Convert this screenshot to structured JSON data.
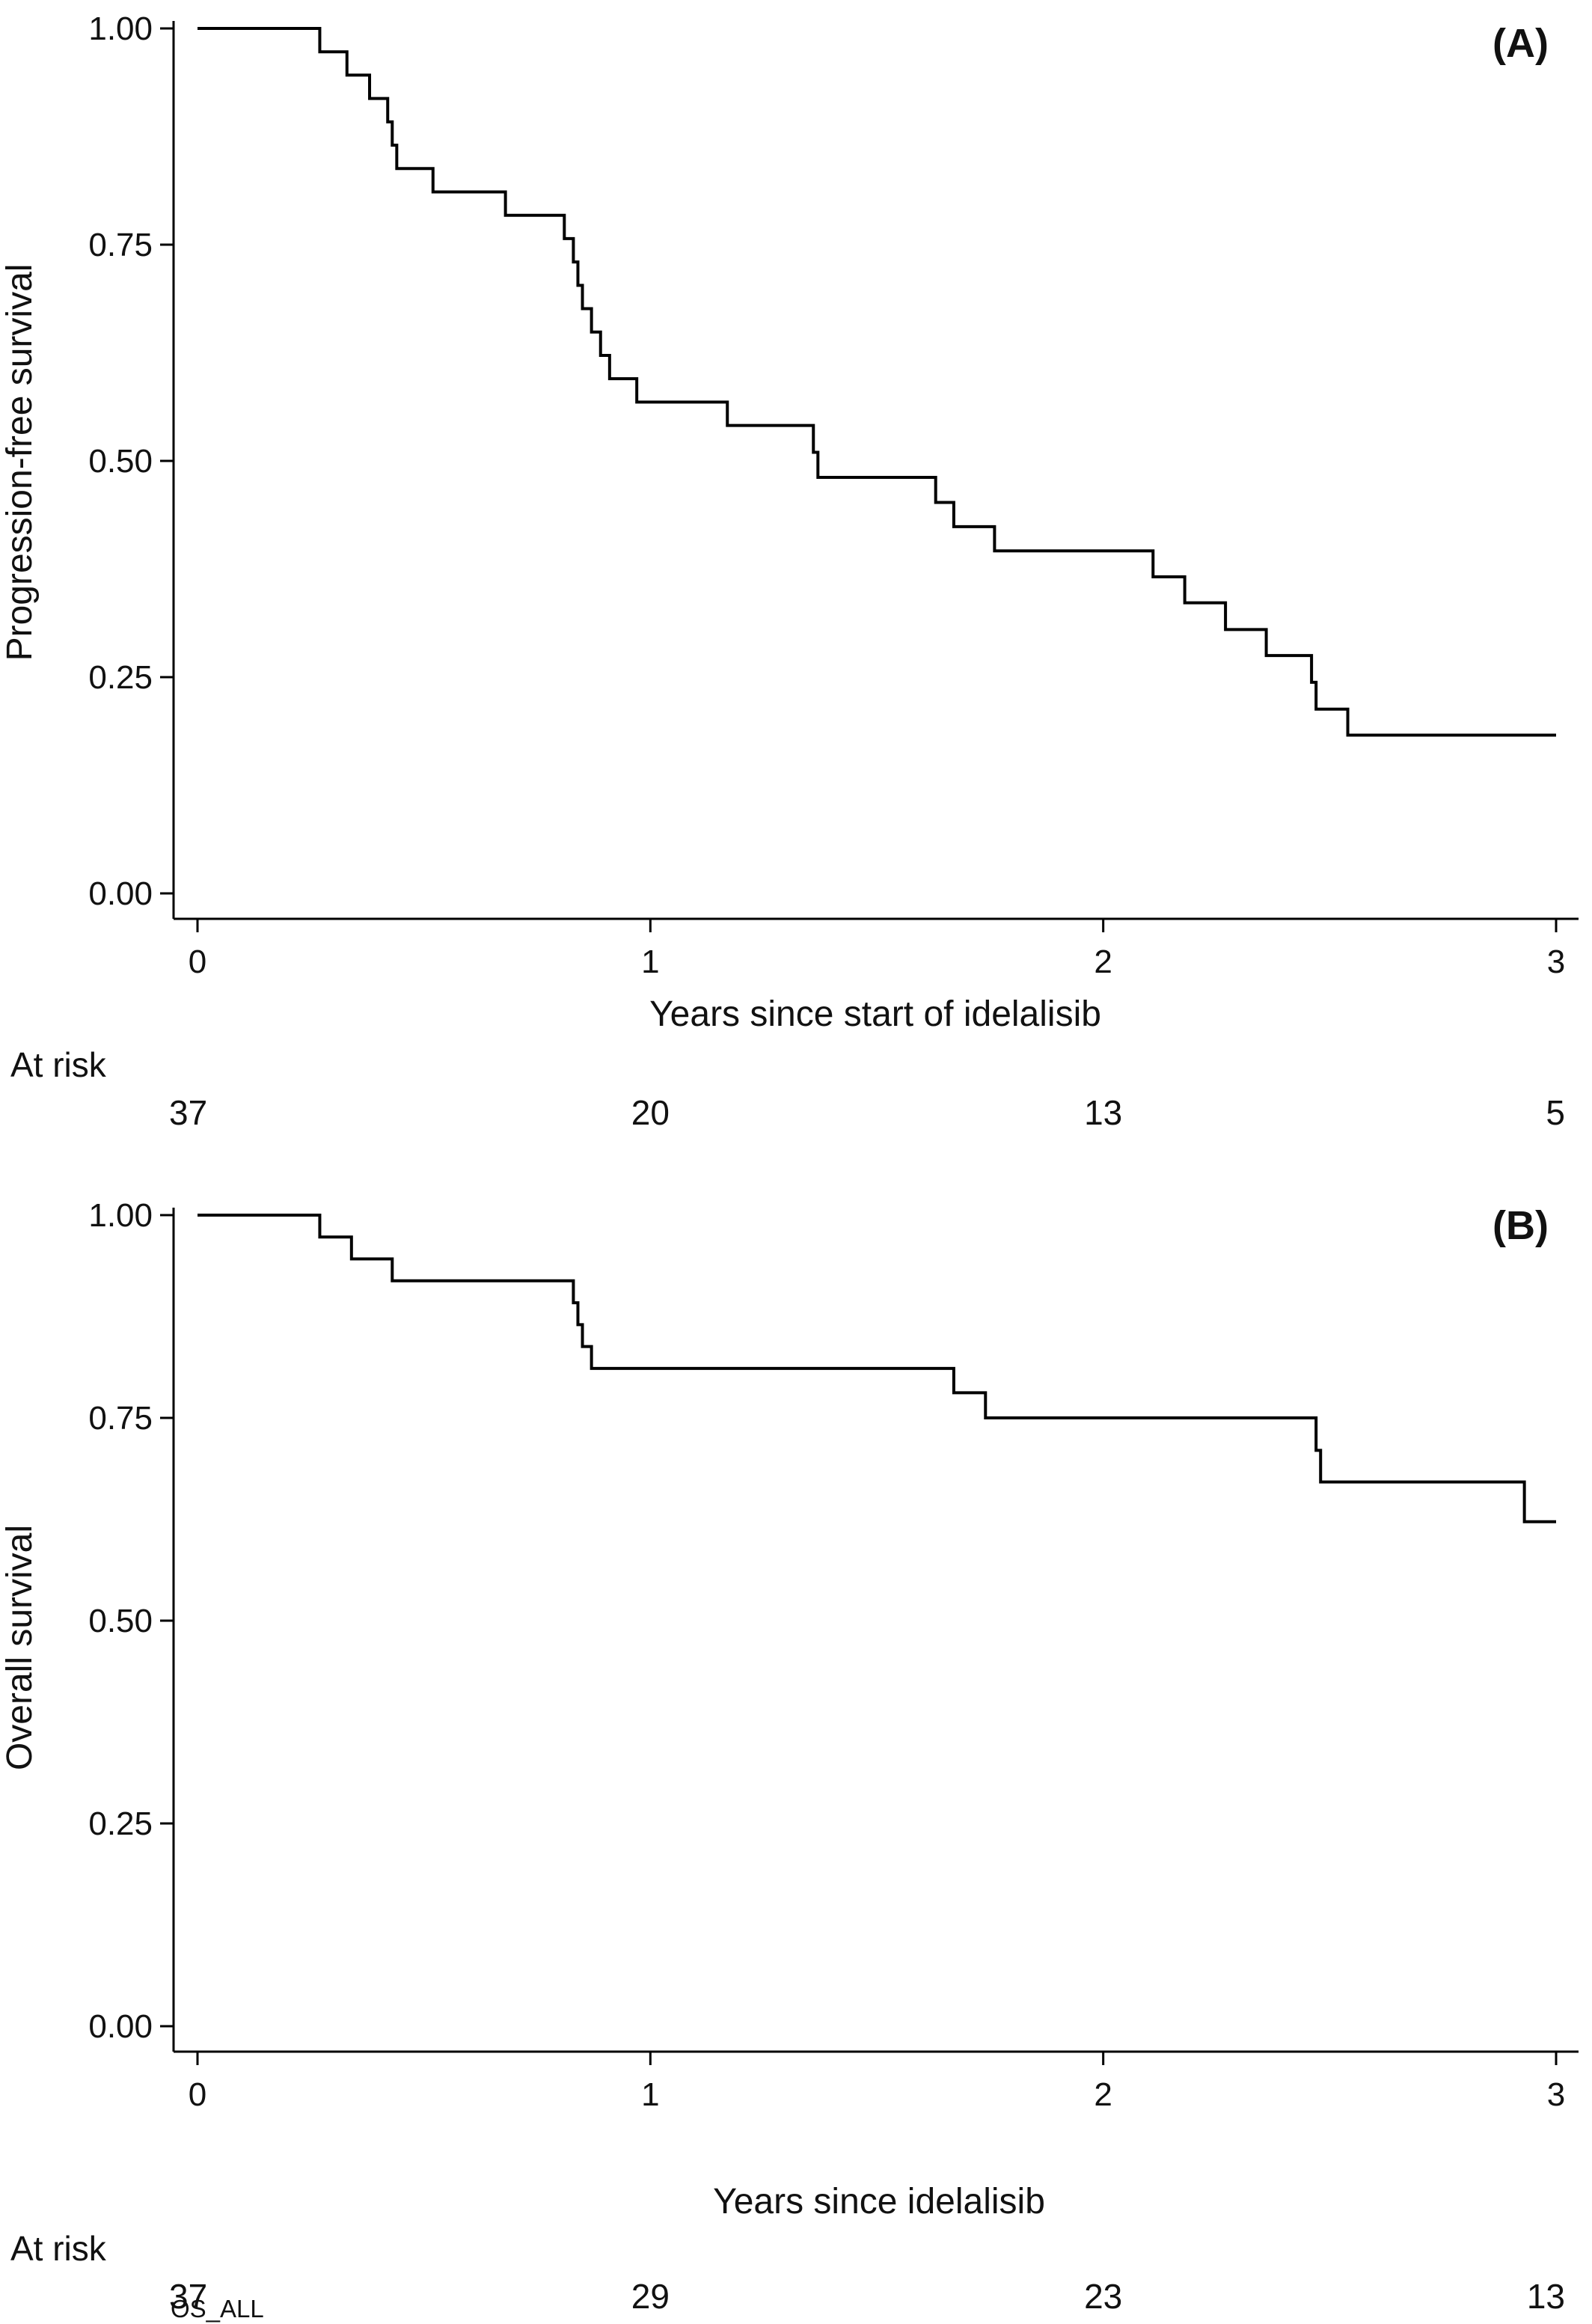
{
  "chart_data": [
    {
      "type": "line",
      "step": true,
      "panel_label": "(A)",
      "xlabel": "Years since start of idelalisib",
      "ylabel": "Progression-free survival",
      "xlim": [
        0,
        3
      ],
      "ylim": [
        0,
        1
      ],
      "x_ticks": [
        0,
        1,
        2,
        3
      ],
      "x_tick_labels": [
        "0",
        "1",
        "2",
        "3"
      ],
      "y_ticks": [
        0,
        0.25,
        0.5,
        0.75,
        1
      ],
      "y_tick_labels": [
        "0.00",
        "0.25",
        "0.50",
        "0.75",
        "1.00"
      ],
      "grid": false,
      "line_color": "#000000",
      "series": [
        {
          "x": [
            0,
            0.27,
            0.33,
            0.38,
            0.42,
            0.43,
            0.44,
            0.46,
            0.52,
            0.68,
            0.81,
            0.83,
            0.84,
            0.85,
            0.87,
            0.89,
            0.91,
            0.97,
            1.17,
            1.36,
            1.37,
            1.63,
            1.67,
            1.76,
            2.11,
            2.18,
            2.27,
            2.36,
            2.46,
            2.47,
            2.49,
            2.54,
            3.0
          ],
          "y": [
            1.0,
            0.973,
            0.946,
            0.919,
            0.892,
            0.865,
            0.838,
            0.838,
            0.811,
            0.784,
            0.757,
            0.73,
            0.703,
            0.676,
            0.649,
            0.622,
            0.595,
            0.568,
            0.541,
            0.51,
            0.481,
            0.452,
            0.424,
            0.396,
            0.366,
            0.336,
            0.305,
            0.275,
            0.244,
            0.213,
            0.213,
            0.183,
            0.183
          ]
        }
      ],
      "at_risk": {
        "title": "At risk",
        "x": [
          0,
          1,
          2,
          3
        ],
        "counts": [
          "37",
          "20",
          "13",
          "5"
        ]
      }
    },
    {
      "type": "line",
      "step": true,
      "panel_label": "(B)",
      "xlabel": "Years since idelalisib",
      "ylabel": "Overall survival",
      "xlim": [
        0,
        3
      ],
      "ylim": [
        0,
        1
      ],
      "x_ticks": [
        0,
        1,
        2,
        3
      ],
      "x_tick_labels": [
        "0",
        "1",
        "2",
        "3"
      ],
      "y_ticks": [
        0,
        0.25,
        0.5,
        0.75,
        1
      ],
      "y_tick_labels": [
        "0.00",
        "0.25",
        "0.50",
        "0.75",
        "1.00"
      ],
      "grid": false,
      "line_color": "#000000",
      "series": [
        {
          "x": [
            0,
            0.27,
            0.34,
            0.43,
            0.83,
            0.84,
            0.85,
            0.87,
            1.67,
            1.74,
            2.47,
            2.48,
            2.93,
            3.0
          ],
          "y": [
            1.0,
            0.973,
            0.946,
            0.919,
            0.892,
            0.865,
            0.838,
            0.811,
            0.781,
            0.75,
            0.71,
            0.671,
            0.622,
            0.622
          ]
        }
      ],
      "at_risk": {
        "title": "At risk",
        "x": [
          0,
          1,
          2,
          3
        ],
        "counts": [
          "37",
          "29",
          "23",
          "13"
        ]
      },
      "footnote": "OS_ALL"
    }
  ]
}
